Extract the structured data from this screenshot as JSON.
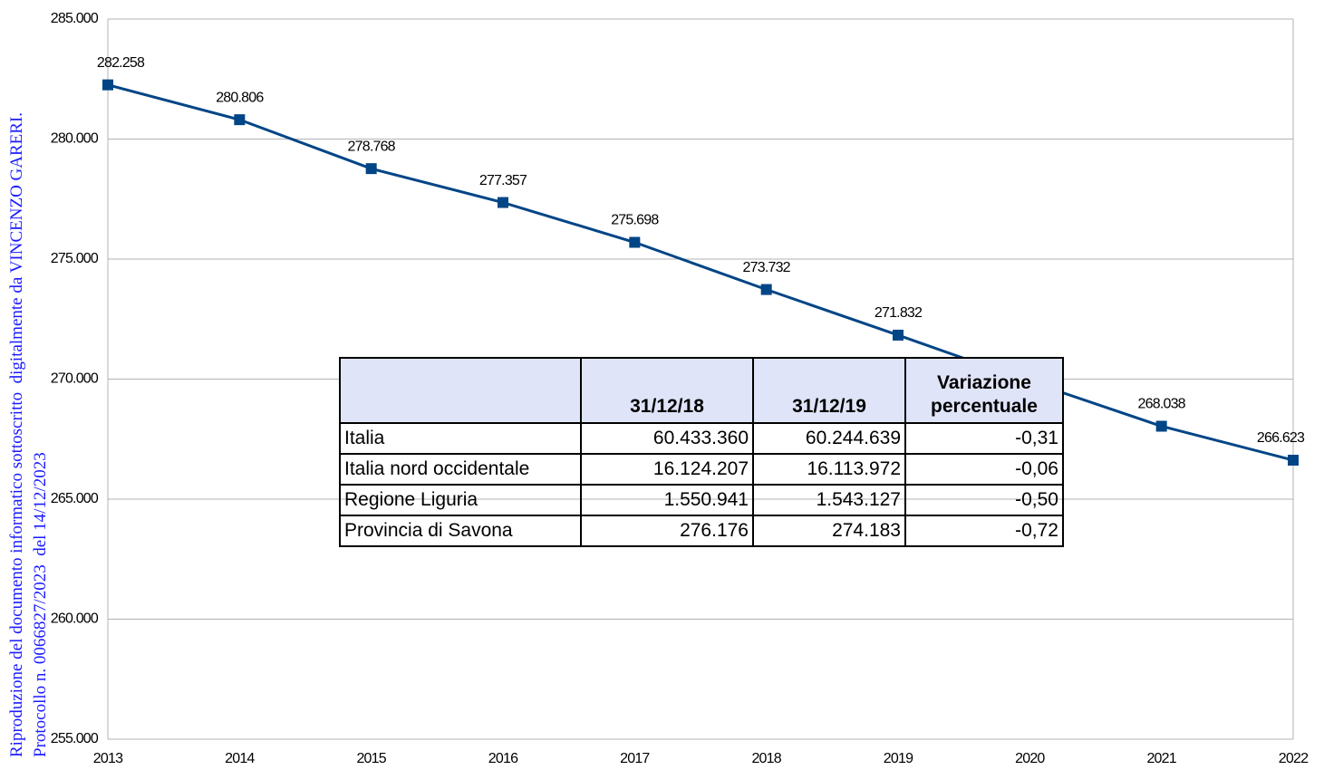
{
  "chart_data": {
    "type": "line",
    "categories": [
      "2013",
      "2014",
      "2015",
      "2016",
      "2017",
      "2018",
      "2019",
      "2020",
      "2021",
      "2022"
    ],
    "values": [
      282258,
      280806,
      278768,
      277357,
      275698,
      273732,
      271832,
      269900,
      268038,
      266623
    ],
    "value_labels": [
      "282.258",
      "280.806",
      "278.768",
      "277.357",
      "275.698",
      "273.732",
      "271.832",
      null,
      "268.038",
      "266.623"
    ],
    "color": "#004586",
    "ylim": [
      255000,
      285000
    ],
    "yticks": [
      {
        "value": 255000,
        "label": "255.000"
      },
      {
        "value": 260000,
        "label": "260.000"
      },
      {
        "value": 265000,
        "label": "265.000"
      },
      {
        "value": 270000,
        "label": "270.000"
      },
      {
        "value": 275000,
        "label": "275.000"
      },
      {
        "value": 280000,
        "label": "280.000"
      },
      {
        "value": 285000,
        "label": "285.000"
      }
    ],
    "grid": true
  },
  "table": {
    "header": [
      "31/12/18",
      "31/12/19",
      "Variazione percentuale"
    ],
    "rows": [
      [
        "Italia",
        "60.433.360",
        "60.244.639",
        "-0,31"
      ],
      [
        "Italia nord occidentale",
        "16.124.207",
        "16.113.972",
        "-0,06"
      ],
      [
        "Regione Liguria",
        "1.550.941",
        "1.543.127",
        "-0,50"
      ],
      [
        "Provincia di Savona",
        "276.176",
        "274.183",
        "-0,72"
      ]
    ]
  },
  "watermark": [
    "Riproduzione del documento informatico sottoscritto  digitalmente da VINCENZO GARERI.",
    "Protocollo n. 0066827/2023  del 14/12/2023"
  ]
}
